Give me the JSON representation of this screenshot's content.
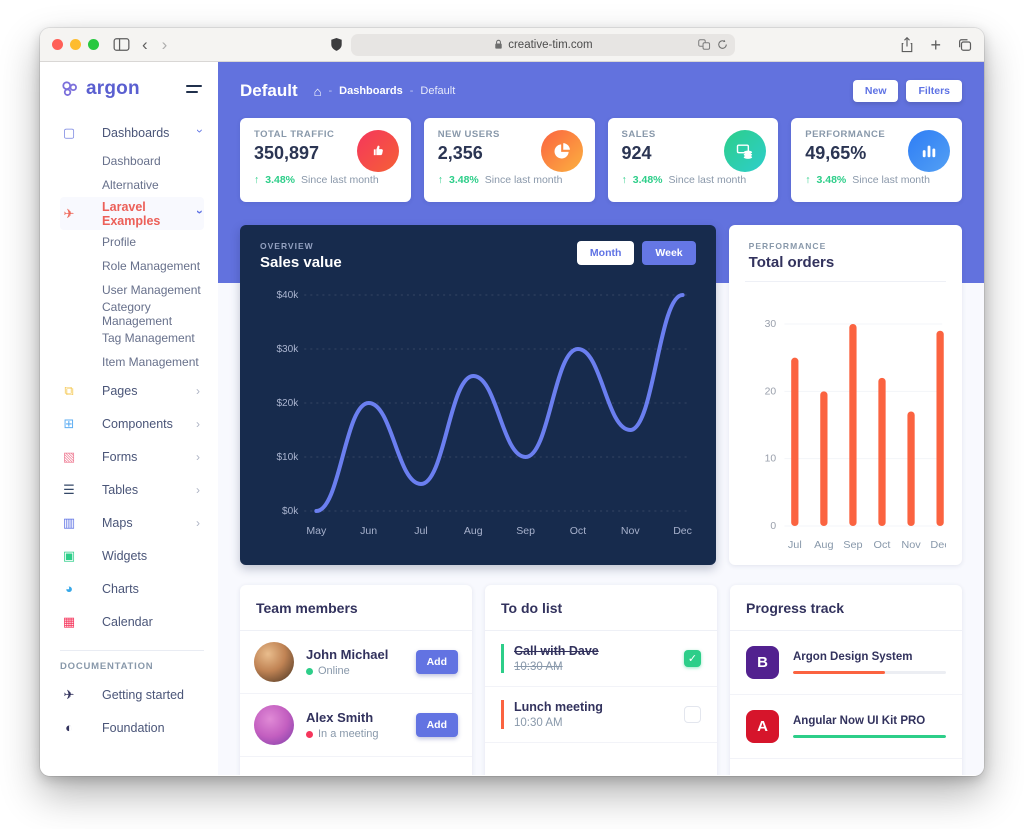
{
  "browser": {
    "url": "creative-tim.com",
    "icons": {
      "back": "‹",
      "forward": "›",
      "plus": "+",
      "chevron_right": "›",
      "home": "⌂",
      "check": "✓",
      "up_arrow": "↑",
      "breadcrumb_sep": "-"
    }
  },
  "sidebar": {
    "logo_text": "argon",
    "items": [
      {
        "label": "Dashboards"
      },
      {
        "label": "Dashboard"
      },
      {
        "label": "Alternative"
      },
      {
        "label": "Laravel Examples"
      },
      {
        "label": "Profile"
      },
      {
        "label": "Role Management"
      },
      {
        "label": "User Management"
      },
      {
        "label": "Category Management"
      },
      {
        "label": "Tag Management"
      },
      {
        "label": "Item Management"
      },
      {
        "label": "Pages"
      },
      {
        "label": "Components"
      },
      {
        "label": "Forms"
      },
      {
        "label": "Tables"
      },
      {
        "label": "Maps"
      },
      {
        "label": "Widgets"
      },
      {
        "label": "Charts"
      },
      {
        "label": "Calendar"
      }
    ],
    "section_label": "DOCUMENTATION",
    "docs": [
      {
        "label": "Getting started"
      },
      {
        "label": "Foundation"
      }
    ]
  },
  "header": {
    "title": "Default",
    "breadcrumb": [
      "Dashboards",
      "Default"
    ],
    "new_button": "New",
    "filters_button": "Filters"
  },
  "stats": [
    {
      "label": "TOTAL TRAFFIC",
      "value": "350,897",
      "delta": "3.48%",
      "caption": "Since last month",
      "icon": "thumbs-up-icon",
      "color": "#f5365c"
    },
    {
      "label": "NEW USERS",
      "value": "2,356",
      "delta": "3.48%",
      "caption": "Since last month",
      "icon": "pie-chart-icon",
      "color": "#fb6340"
    },
    {
      "label": "SALES",
      "value": "924",
      "delta": "3.48%",
      "caption": "Since last month",
      "icon": "coins-icon",
      "color": "#2dce89"
    },
    {
      "label": "PERFORMANCE",
      "value": "49,65%",
      "delta": "3.48%",
      "caption": "Since last month",
      "icon": "bar-chart-icon",
      "color": "#2e7df5"
    }
  ],
  "chart_data": [
    {
      "type": "line",
      "kicker": "OVERVIEW",
      "title": "Sales value",
      "buttons": [
        "Month",
        "Week"
      ],
      "active_button": "Week",
      "x": [
        "May",
        "Jun",
        "Jul",
        "Aug",
        "Sep",
        "Oct",
        "Nov",
        "Dec"
      ],
      "values": [
        0,
        20,
        5,
        25,
        10,
        30,
        15,
        40
      ],
      "ylim": [
        0,
        40
      ],
      "yticks": [
        "$0k",
        "$10k",
        "$20k",
        "$30k",
        "$40k"
      ],
      "ylabel": "",
      "xlabel": "",
      "grid": "dashed",
      "line_color": "#6b7ff0",
      "background": "#172b4d"
    },
    {
      "type": "bar",
      "kicker": "PERFORMANCE",
      "title": "Total orders",
      "categories": [
        "Jul",
        "Aug",
        "Sep",
        "Oct",
        "Nov",
        "Dec"
      ],
      "values": [
        25,
        20,
        30,
        22,
        17,
        29
      ],
      "ylim": [
        0,
        30
      ],
      "yticks": [
        0,
        10,
        20,
        30
      ],
      "ylabel": "",
      "xlabel": "",
      "bar_color": "#fb6340"
    }
  ],
  "team": {
    "title": "Team members",
    "members": [
      {
        "name": "John Michael",
        "status": "Online",
        "status_color": "#2dce89",
        "action": "Add"
      },
      {
        "name": "Alex Smith",
        "status": "In a meeting",
        "status_color": "#f5365c",
        "action": "Add"
      }
    ]
  },
  "todo": {
    "title": "To do list",
    "items": [
      {
        "task": "Call with Dave",
        "time": "10:30 AM",
        "done": true,
        "accent": "#2dce89"
      },
      {
        "task": "Lunch meeting",
        "time": "10:30 AM",
        "done": false,
        "accent": "#fb6340"
      }
    ]
  },
  "progress": {
    "title": "Progress track",
    "items": [
      {
        "name": "Argon Design System",
        "badge_letter": "B",
        "badge_color": "#52218f",
        "bar_color": "#fb6340",
        "percent": 60
      },
      {
        "name": "Angular Now UI Kit PRO",
        "badge_letter": "A",
        "badge_color": "#d6152b",
        "bar_color": "#2dce89",
        "percent": 100
      }
    ]
  },
  "colors": {
    "accent": "#5e72e4",
    "header_bg": "#6272de",
    "dark_card": "#172b4d",
    "success": "#2dce89",
    "danger": "#f5365c",
    "warning": "#fb6340"
  }
}
